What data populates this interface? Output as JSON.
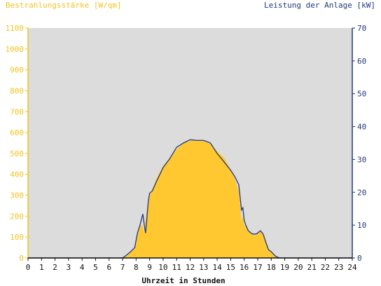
{
  "chart_data": {
    "type": "area",
    "left_title": "Bestrahlungsstärke [W/qm]",
    "right_title": "Leistung der Anlage [kW]",
    "xlabel": "Uhrzeit in Stunden",
    "x_ticks": [
      "0",
      "1",
      "2",
      "3",
      "4",
      "5",
      "6",
      "7",
      "8",
      "9",
      "10",
      "11",
      "12",
      "13",
      "14",
      "15",
      "16",
      "17",
      "18",
      "19",
      "20",
      "21",
      "22",
      "23",
      "24"
    ],
    "xlim": [
      0,
      24
    ],
    "ylim_left": [
      0,
      1100
    ],
    "ylim_right": [
      0,
      70
    ],
    "y_ticks_left": [
      "0",
      "100",
      "200",
      "300",
      "400",
      "500",
      "600",
      "700",
      "800",
      "900",
      "1000",
      "1100"
    ],
    "y_ticks_right": [
      "0",
      "10",
      "20",
      "30",
      "40",
      "50",
      "60",
      "70"
    ],
    "grid": false,
    "colors": {
      "plot_bg": "#dcdcdc",
      "area": "#ffc830",
      "line": "#223a7a",
      "left_axis": "#f2c322",
      "right_axis": "#223a7a"
    },
    "series": [
      {
        "name": "Bestrahlungsstärke [W/qm]",
        "axis": "left",
        "style": "area",
        "x": [
          0,
          7.0,
          7.3,
          7.6,
          7.9,
          8.1,
          8.3,
          8.5,
          8.6,
          8.7,
          8.8,
          8.9,
          9.0,
          9.2,
          9.5,
          10.0,
          10.5,
          11.0,
          11.5,
          12.0,
          12.5,
          13.0,
          13.5,
          14.0,
          14.5,
          15.0,
          15.3,
          15.6,
          15.8,
          15.9,
          16.0,
          16.1,
          16.3,
          16.6,
          16.9,
          17.2,
          17.4,
          17.6,
          17.8,
          18.0,
          18.3,
          18.6,
          18.8,
          24
        ],
        "y": [
          0,
          0,
          15,
          30,
          50,
          120,
          160,
          150,
          120,
          180,
          240,
          260,
          300,
          330,
          380,
          440,
          480,
          520,
          550,
          560,
          565,
          560,
          545,
          510,
          480,
          420,
          380,
          320,
          180,
          200,
          160,
          150,
          130,
          110,
          110,
          130,
          110,
          70,
          40,
          30,
          10,
          0,
          0,
          0
        ]
      },
      {
        "name": "Leistung der Anlage [kW]",
        "axis": "right",
        "style": "line",
        "x": [
          0,
          7.0,
          7.3,
          7.6,
          7.9,
          8.1,
          8.3,
          8.5,
          8.6,
          8.7,
          8.8,
          8.9,
          9.0,
          9.2,
          9.5,
          10.0,
          10.5,
          11.0,
          11.5,
          12.0,
          12.5,
          13.0,
          13.5,
          14.0,
          14.5,
          15.0,
          15.3,
          15.6,
          15.8,
          15.9,
          16.0,
          16.1,
          16.3,
          16.6,
          16.9,
          17.2,
          17.4,
          17.6,
          17.8,
          18.0,
          18.3,
          18.6,
          18.8,
          24
        ],
        "y": [
          0,
          0,
          0.9,
          1.9,
          3.2,
          7.6,
          10.2,
          13.4,
          10.2,
          7.6,
          12.1,
          17.2,
          19.7,
          20.4,
          23.2,
          27.5,
          30.3,
          33.7,
          35.0,
          36.0,
          35.8,
          35.8,
          35.0,
          31.8,
          29.3,
          26.7,
          24.8,
          22.3,
          14.6,
          15.3,
          11.5,
          10.2,
          8.3,
          7.3,
          7.3,
          8.3,
          7.3,
          4.8,
          2.5,
          1.9,
          0.6,
          0,
          0,
          0
        ]
      }
    ]
  }
}
